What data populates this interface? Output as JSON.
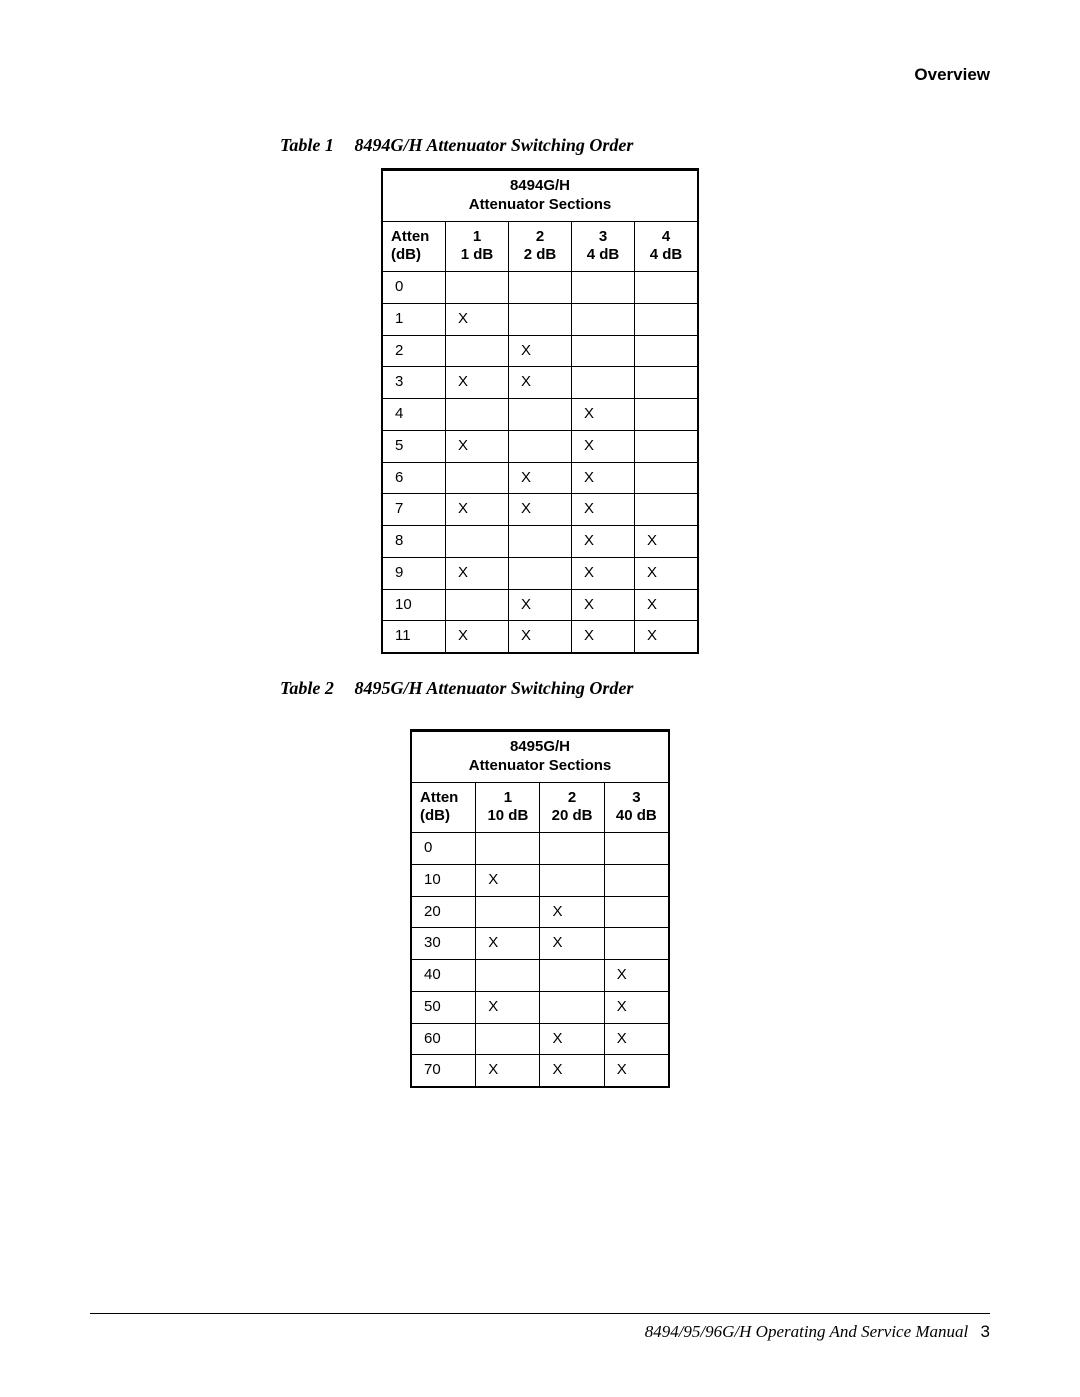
{
  "header": {
    "section": "Overview"
  },
  "table1": {
    "caption_prefix": "Table 1",
    "caption_title": "8494G/H Attenuator Switching Order",
    "title_line1": "8494G/H",
    "title_line2": "Attenuator Sections",
    "atten_label_line1": "Atten",
    "atten_label_line2": "(dB)",
    "columns": [
      {
        "num": "1",
        "db": "1 dB"
      },
      {
        "num": "2",
        "db": "2 dB"
      },
      {
        "num": "3",
        "db": "4 dB"
      },
      {
        "num": "4",
        "db": "4 dB"
      }
    ],
    "mark": "X",
    "rows": [
      {
        "atten": "0",
        "cells": [
          "",
          "",
          "",
          ""
        ]
      },
      {
        "atten": "1",
        "cells": [
          "X",
          "",
          "",
          ""
        ]
      },
      {
        "atten": "2",
        "cells": [
          "",
          "X",
          "",
          ""
        ]
      },
      {
        "atten": "3",
        "cells": [
          "X",
          "X",
          "",
          ""
        ]
      },
      {
        "atten": "4",
        "cells": [
          "",
          "",
          "X",
          ""
        ]
      },
      {
        "atten": "5",
        "cells": [
          "X",
          "",
          "X",
          ""
        ]
      },
      {
        "atten": "6",
        "cells": [
          "",
          "X",
          "X",
          ""
        ]
      },
      {
        "atten": "7",
        "cells": [
          "X",
          "X",
          "X",
          ""
        ]
      },
      {
        "atten": "8",
        "cells": [
          "",
          "",
          "X",
          "X"
        ]
      },
      {
        "atten": "9",
        "cells": [
          "X",
          "",
          "X",
          "X"
        ]
      },
      {
        "atten": "10",
        "cells": [
          "",
          "X",
          "X",
          "X"
        ]
      },
      {
        "atten": "11",
        "cells": [
          "X",
          "X",
          "X",
          "X"
        ]
      }
    ]
  },
  "table2": {
    "caption_prefix": "Table 2",
    "caption_title": "8495G/H Attenuator Switching Order",
    "title_line1": "8495G/H",
    "title_line2": "Attenuator Sections",
    "atten_label_line1": "Atten",
    "atten_label_line2": "(dB)",
    "columns": [
      {
        "num": "1",
        "db": "10 dB"
      },
      {
        "num": "2",
        "db": "20 dB"
      },
      {
        "num": "3",
        "db": "40 dB"
      }
    ],
    "mark": "X",
    "rows": [
      {
        "atten": "0",
        "cells": [
          "",
          "",
          ""
        ]
      },
      {
        "atten": "10",
        "cells": [
          "X",
          "",
          ""
        ]
      },
      {
        "atten": "20",
        "cells": [
          "",
          "X",
          ""
        ]
      },
      {
        "atten": "30",
        "cells": [
          "X",
          "X",
          ""
        ]
      },
      {
        "atten": "40",
        "cells": [
          "",
          "",
          "X"
        ]
      },
      {
        "atten": "50",
        "cells": [
          "X",
          "",
          "X"
        ]
      },
      {
        "atten": "60",
        "cells": [
          "",
          "X",
          "X"
        ]
      },
      {
        "atten": "70",
        "cells": [
          "X",
          "X",
          "X"
        ]
      }
    ]
  },
  "footer": {
    "manual_title": "8494/95/96G/H Operating And Service Manual",
    "page_number": "3"
  }
}
